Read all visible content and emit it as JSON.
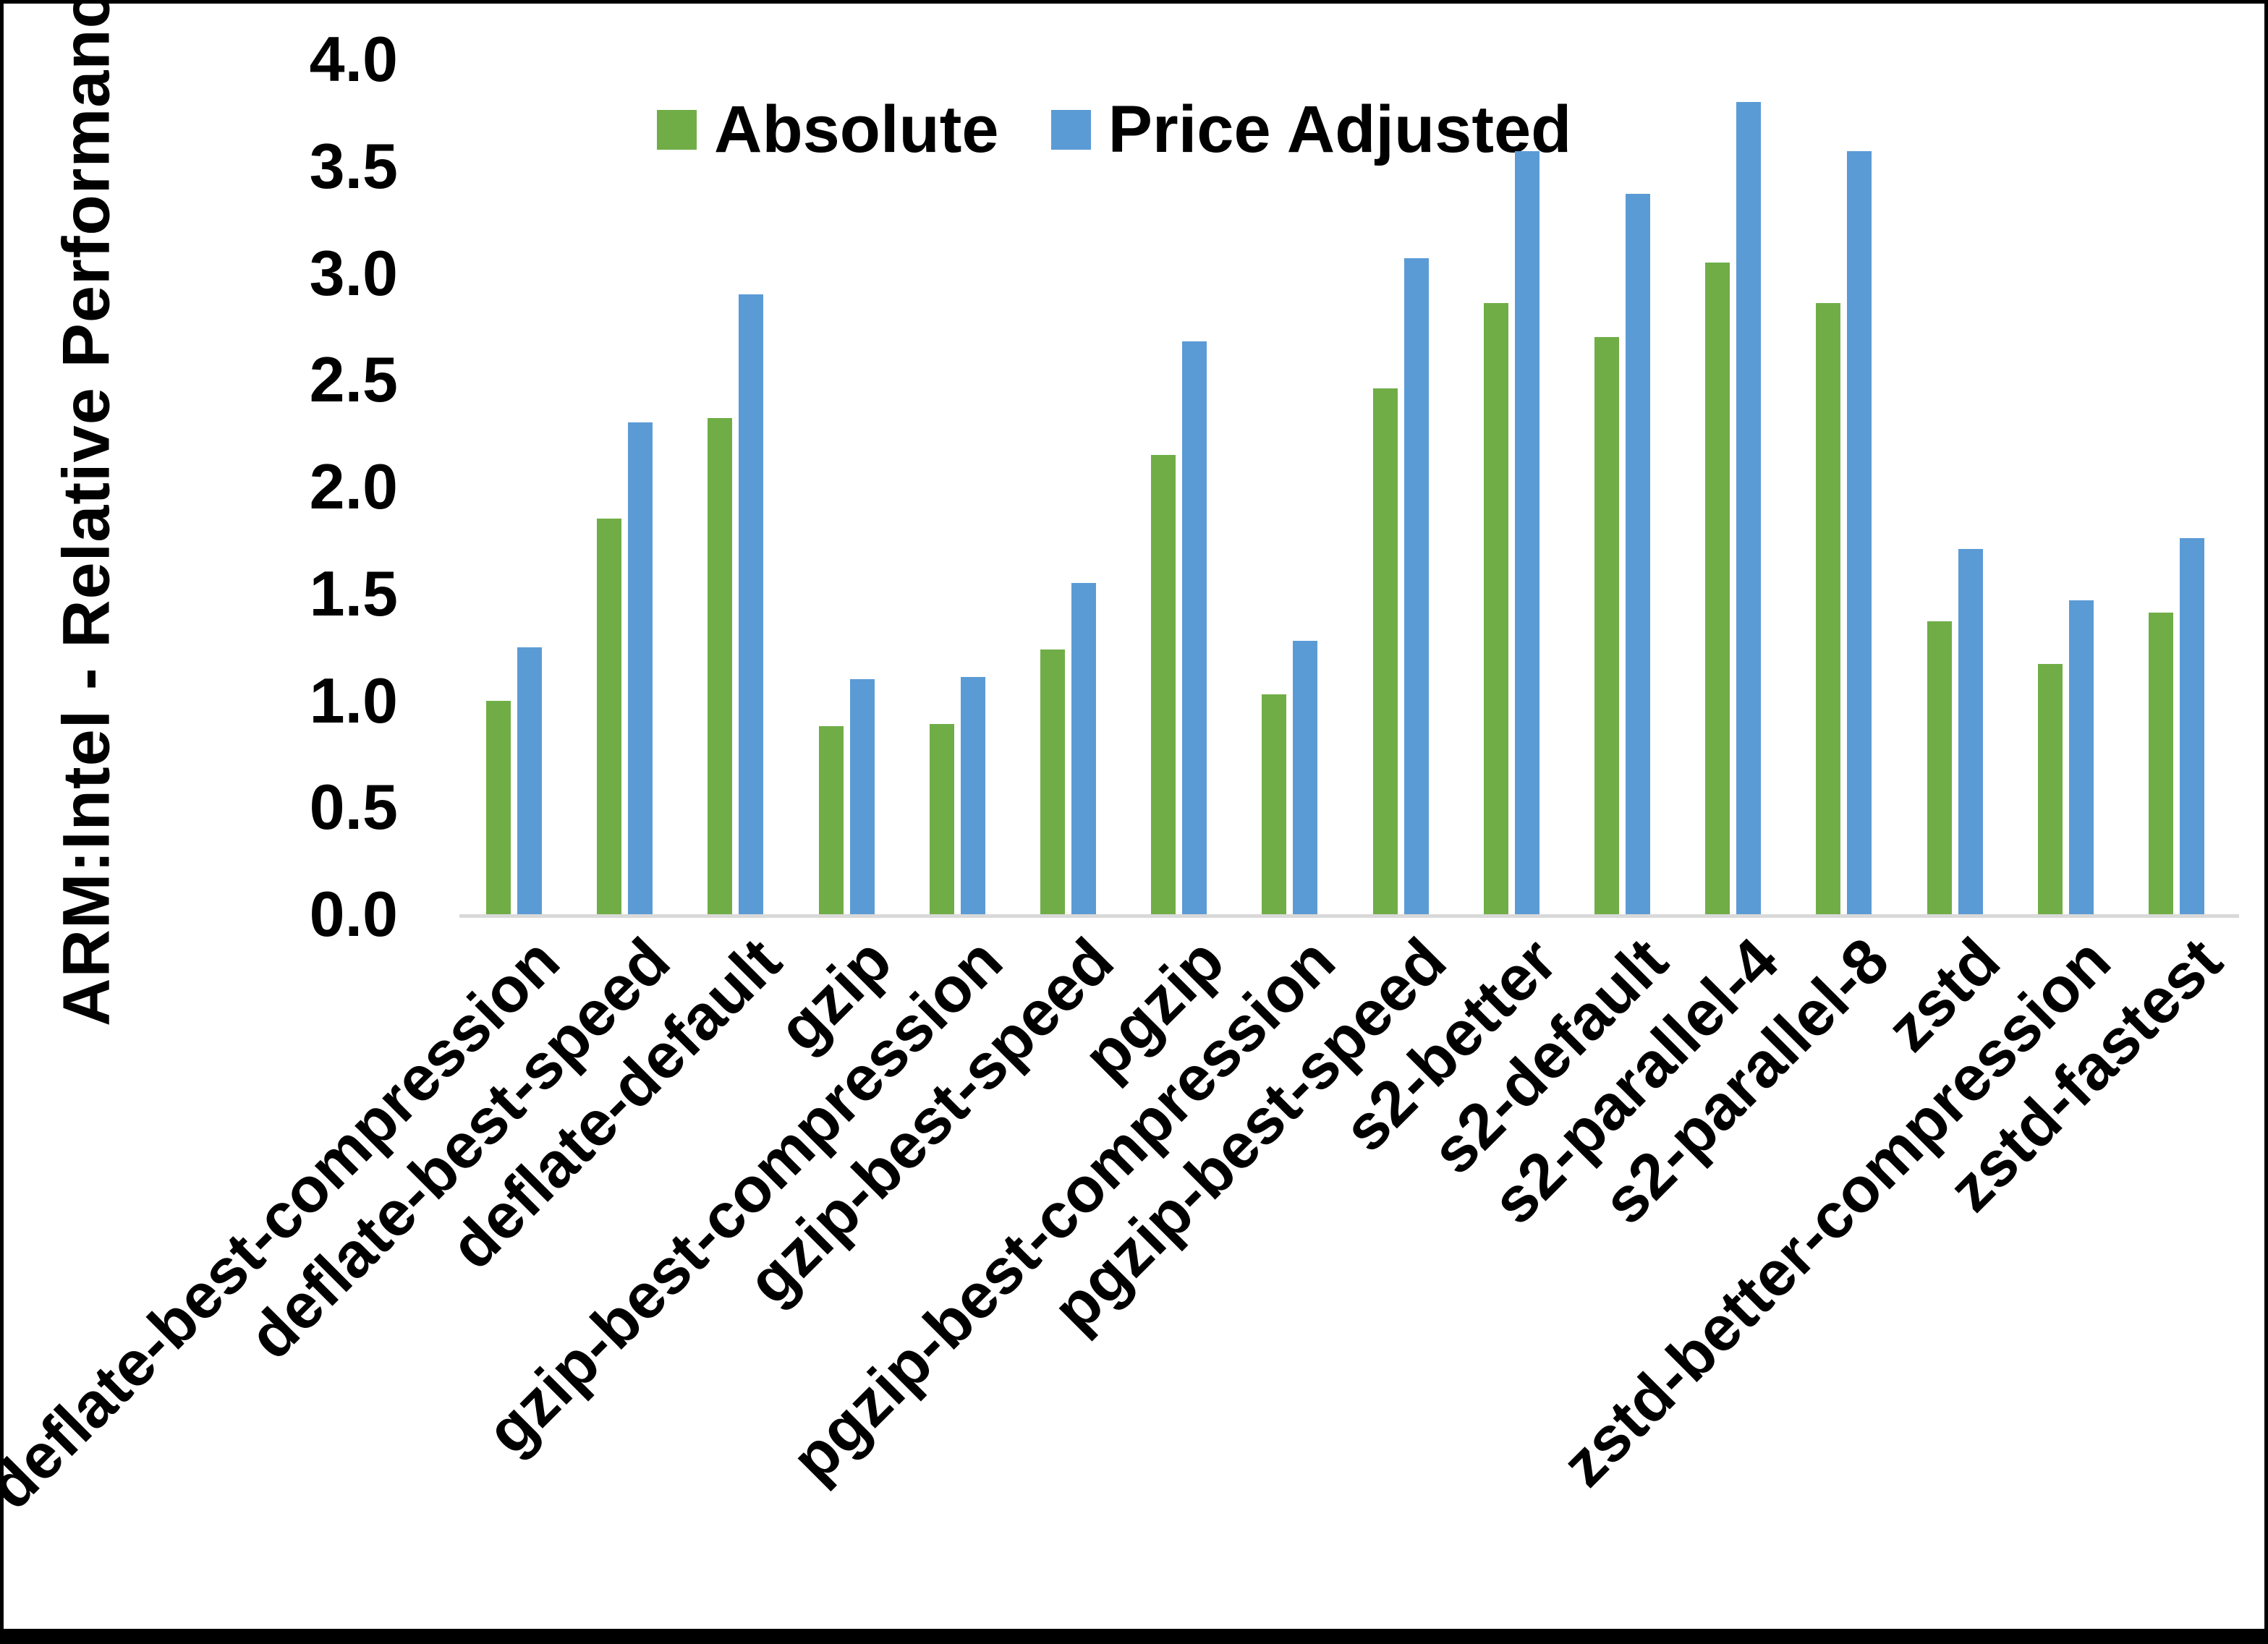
{
  "chart_data": {
    "type": "bar",
    "title": "",
    "ylabel": "ARM:Intel - Relative Performance",
    "xlabel": "",
    "ylim": [
      0.0,
      4.0
    ],
    "yticks": [
      "0.0",
      "0.5",
      "1.0",
      "1.5",
      "2.0",
      "2.5",
      "3.0",
      "3.5",
      "4.0"
    ],
    "grid": "off",
    "legend_position": "top",
    "categories": [
      "deflate-best-compression",
      "deflate-best-speed",
      "deflate-default",
      "gzip",
      "gzip-best-compression",
      "gzip-best-speed",
      "pgzip",
      "pgzip-best-compression",
      "pgzip-best-speed",
      "s2-better",
      "s2-default",
      "s2-parallel-4",
      "s2-parallel-8",
      "zstd",
      "zstd-better-compression",
      "zstd-fastest"
    ],
    "series": [
      {
        "name": "Absolute",
        "color": "#70AD47",
        "values": [
          1.0,
          1.85,
          2.32,
          0.88,
          0.89,
          1.24,
          2.15,
          1.03,
          2.46,
          2.86,
          2.7,
          3.05,
          2.86,
          1.37,
          1.17,
          1.41
        ]
      },
      {
        "name": "Price Adjusted",
        "color": "#5B9BD5",
        "values": [
          1.25,
          2.3,
          2.9,
          1.1,
          1.11,
          1.55,
          2.68,
          1.28,
          3.07,
          3.57,
          3.37,
          3.8,
          3.57,
          1.71,
          1.47,
          1.76
        ]
      }
    ],
    "colors": {
      "axis_line": "#d9d9d9",
      "text": "#000000",
      "background": "#ffffff"
    }
  }
}
